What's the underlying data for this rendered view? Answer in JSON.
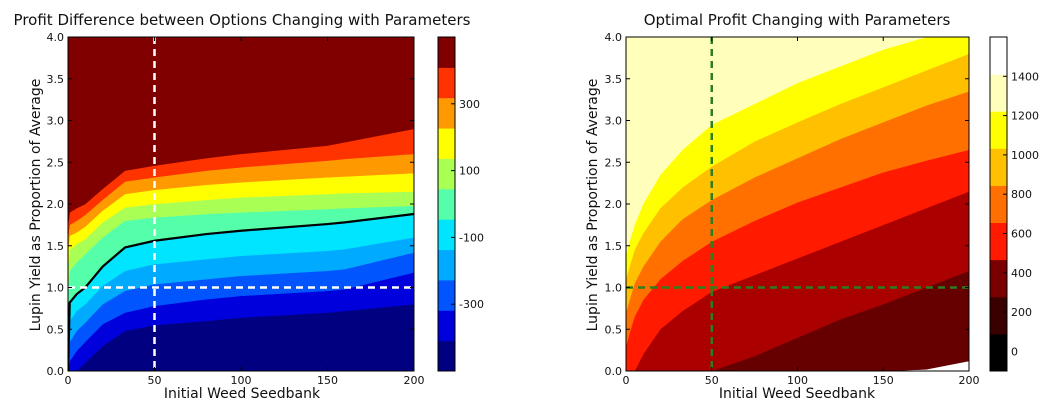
{
  "chart_data": [
    {
      "type": "contour",
      "title": "Profit Difference between Options Changing with Parameters",
      "xlabel": "Initial Weed Seedbank",
      "ylabel": "Lupin Yield as Proportion of Average",
      "xlim": [
        0,
        200
      ],
      "ylim": [
        0,
        4
      ],
      "xticks": [
        "0",
        "50",
        "100",
        "150",
        "200"
      ],
      "yticks": [
        "0.0",
        "0.5",
        "1.0",
        "1.5",
        "2.0",
        "2.5",
        "3.0",
        "3.5",
        "4.0"
      ],
      "reference_lines": {
        "x": 50,
        "y": 1.0,
        "style": "dashed",
        "color": "#ffffff"
      },
      "zero_contour": {
        "color": "#000000",
        "x": [
          0,
          1,
          5,
          10,
          20,
          33,
          50,
          80,
          100,
          150,
          160,
          200
        ],
        "y": [
          0,
          0.82,
          0.92,
          1.0,
          1.25,
          1.48,
          1.56,
          1.64,
          1.68,
          1.76,
          1.78,
          1.88
        ]
      },
      "bands": [
        {
          "color": "#800000",
          "x": [
            0,
            1,
            5,
            10,
            20,
            33,
            50,
            80,
            100,
            150,
            160,
            200
          ],
          "y_low": [
            1.75,
            1.9,
            1.95,
            2.0,
            2.18,
            2.4,
            2.46,
            2.55,
            2.6,
            2.7,
            2.74,
            2.9
          ],
          "fill_to_top": true
        },
        {
          "color": "#ff3300",
          "x": [
            0,
            1,
            5,
            10,
            20,
            33,
            50,
            80,
            100,
            150,
            160,
            200
          ],
          "y_low": [
            1.6,
            1.75,
            1.8,
            1.87,
            2.05,
            2.27,
            2.32,
            2.4,
            2.44,
            2.52,
            2.54,
            2.6
          ]
        },
        {
          "color": "#ff9900",
          "x": [
            0,
            1,
            5,
            10,
            20,
            33,
            50,
            80,
            100,
            150,
            160,
            200
          ],
          "y_low": [
            1.45,
            1.62,
            1.66,
            1.73,
            1.92,
            2.12,
            2.17,
            2.23,
            2.26,
            2.32,
            2.33,
            2.37
          ]
        },
        {
          "color": "#ffff00",
          "x": [
            0,
            1,
            5,
            10,
            20,
            33,
            50,
            80,
            100,
            150,
            160,
            200
          ],
          "y_low": [
            1.25,
            1.45,
            1.52,
            1.58,
            1.78,
            1.96,
            2.0,
            2.05,
            2.08,
            2.12,
            2.13,
            2.15
          ]
        },
        {
          "color": "#aaff55",
          "x": [
            0,
            1,
            5,
            10,
            20,
            33,
            50,
            80,
            100,
            150,
            160,
            200
          ],
          "y_low": [
            1.0,
            1.2,
            1.3,
            1.4,
            1.6,
            1.8,
            1.84,
            1.88,
            1.9,
            1.94,
            1.95,
            1.98
          ]
        },
        {
          "color": "#55ffaa",
          "x": [
            0,
            1,
            5,
            10,
            20,
            33,
            50,
            80,
            100,
            150,
            160,
            200
          ],
          "y_low": [
            0,
            0.82,
            0.92,
            1.0,
            1.25,
            1.48,
            1.56,
            1.64,
            1.68,
            1.76,
            1.78,
            1.88
          ]
        },
        {
          "color": "#00e5ff",
          "x": [
            0,
            1,
            5,
            10,
            20,
            33,
            50,
            80,
            100,
            150,
            160,
            200
          ],
          "y_low": [
            0,
            0.6,
            0.72,
            0.8,
            1.02,
            1.2,
            1.28,
            1.34,
            1.38,
            1.44,
            1.46,
            1.6
          ]
        },
        {
          "color": "#00aaff",
          "x": [
            0,
            1,
            5,
            10,
            20,
            33,
            50,
            80,
            100,
            150,
            160,
            200
          ],
          "y_low": [
            0,
            0.35,
            0.48,
            0.58,
            0.8,
            0.96,
            1.04,
            1.1,
            1.14,
            1.2,
            1.22,
            1.42
          ]
        },
        {
          "color": "#0055ff",
          "x": [
            0,
            1,
            5,
            10,
            20,
            33,
            50,
            80,
            100,
            150,
            160,
            200
          ],
          "y_low": [
            0,
            0.12,
            0.24,
            0.35,
            0.56,
            0.7,
            0.78,
            0.86,
            0.9,
            0.96,
            0.98,
            1.18
          ]
        },
        {
          "color": "#0000dd",
          "x": [
            0,
            1,
            5,
            10,
            20,
            33,
            50,
            80,
            100,
            150,
            160,
            200
          ],
          "y_low": [
            0,
            0,
            0,
            0.1,
            0.3,
            0.48,
            0.55,
            0.6,
            0.64,
            0.7,
            0.72,
            0.8
          ]
        },
        {
          "color": "#000080",
          "x": [
            0,
            200
          ],
          "y_low": [
            0,
            0
          ],
          "base": true
        }
      ],
      "colorbar": {
        "vmin": -500,
        "vmax": 500,
        "colors": [
          "#000080",
          "#0000dd",
          "#0055ff",
          "#00aaff",
          "#00e5ff",
          "#55ffaa",
          "#aaff55",
          "#ffff00",
          "#ff9900",
          "#ff3300",
          "#800000"
        ],
        "ticks": [
          {
            "value": -300,
            "label": "-300"
          },
          {
            "value": -100,
            "label": "-100"
          },
          {
            "value": 100,
            "label": "100"
          },
          {
            "value": 300,
            "label": "300"
          }
        ]
      }
    },
    {
      "type": "contour",
      "title": "Optimal Profit Changing with Parameters",
      "xlabel": "Initial Weed Seedbank",
      "ylabel": "Lupin Yield as Proportion of Average",
      "xlim": [
        0,
        200
      ],
      "ylim": [
        0,
        4
      ],
      "xticks": [
        "0",
        "50",
        "100",
        "150",
        "200"
      ],
      "yticks": [
        "0.0",
        "0.5",
        "1.0",
        "1.5",
        "2.0",
        "2.5",
        "3.0",
        "3.5",
        "4.0"
      ],
      "reference_lines": {
        "x": 50,
        "y": 1.0,
        "style": "dashed",
        "color": "#2e7d1e"
      },
      "bands": [
        {
          "color": "#ffffff",
          "x": [
            0,
            200
          ],
          "y_low": [
            0,
            0
          ],
          "base": true
        },
        {
          "color": "#ffffbb",
          "x": [
            0,
            2,
            5,
            10,
            20,
            33,
            50,
            75,
            100,
            125,
            150,
            175,
            200
          ],
          "y_low": [
            1.4,
            1.55,
            1.75,
            2.0,
            2.35,
            2.65,
            2.95,
            3.2,
            3.45,
            3.65,
            3.85,
            4.0,
            4.0
          ]
        },
        {
          "color": "#ffff00",
          "x": [
            0,
            2,
            5,
            10,
            20,
            33,
            50,
            75,
            100,
            125,
            150,
            175,
            200
          ],
          "y_low": [
            1.1,
            1.25,
            1.45,
            1.65,
            1.95,
            2.2,
            2.45,
            2.75,
            2.98,
            3.2,
            3.4,
            3.6,
            3.8
          ]
        },
        {
          "color": "#ffc000",
          "x": [
            0,
            2,
            5,
            10,
            20,
            33,
            50,
            75,
            100,
            125,
            150,
            175,
            200
          ],
          "y_low": [
            0.7,
            0.85,
            1.05,
            1.25,
            1.55,
            1.82,
            2.05,
            2.32,
            2.55,
            2.78,
            2.98,
            3.18,
            3.35
          ]
        },
        {
          "color": "#ff7000",
          "x": [
            0,
            2,
            5,
            10,
            20,
            33,
            50,
            75,
            100,
            125,
            150,
            175,
            200
          ],
          "y_low": [
            0.3,
            0.45,
            0.65,
            0.85,
            1.1,
            1.32,
            1.55,
            1.8,
            2.02,
            2.2,
            2.38,
            2.52,
            2.65
          ]
        },
        {
          "color": "#ff1a00",
          "x": [
            0,
            5,
            10,
            20,
            33,
            50,
            75,
            100,
            125,
            150,
            175,
            200
          ],
          "y_low": [
            0,
            0,
            0.2,
            0.5,
            0.72,
            0.95,
            1.15,
            1.35,
            1.55,
            1.75,
            1.95,
            2.15
          ]
        },
        {
          "color": "#aa0000",
          "x": [
            0,
            20,
            40,
            50,
            75,
            100,
            125,
            150,
            175,
            200
          ],
          "y_low": [
            0,
            0,
            0,
            0,
            0.18,
            0.4,
            0.62,
            0.8,
            1.0,
            1.2
          ]
        },
        {
          "color": "#660000",
          "x": [
            0,
            100,
            125,
            150,
            175,
            200
          ],
          "y_low": [
            0,
            0,
            0,
            0,
            0.02,
            0.12
          ]
        }
      ],
      "colorbar": {
        "vmin": -100,
        "vmax": 1600,
        "colors": [
          "#000000",
          "#3a0000",
          "#7a0000",
          "#ff1a00",
          "#ff7000",
          "#ffc000",
          "#ffff00",
          "#ffffbb",
          "#ffffff"
        ],
        "ticks": [
          {
            "value": 0,
            "label": "0"
          },
          {
            "value": 200,
            "label": "200"
          },
          {
            "value": 400,
            "label": "400"
          },
          {
            "value": 600,
            "label": "600"
          },
          {
            "value": 800,
            "label": "800"
          },
          {
            "value": 1000,
            "label": "1000"
          },
          {
            "value": 1200,
            "label": "1200"
          },
          {
            "value": 1400,
            "label": "1400"
          }
        ]
      }
    }
  ]
}
